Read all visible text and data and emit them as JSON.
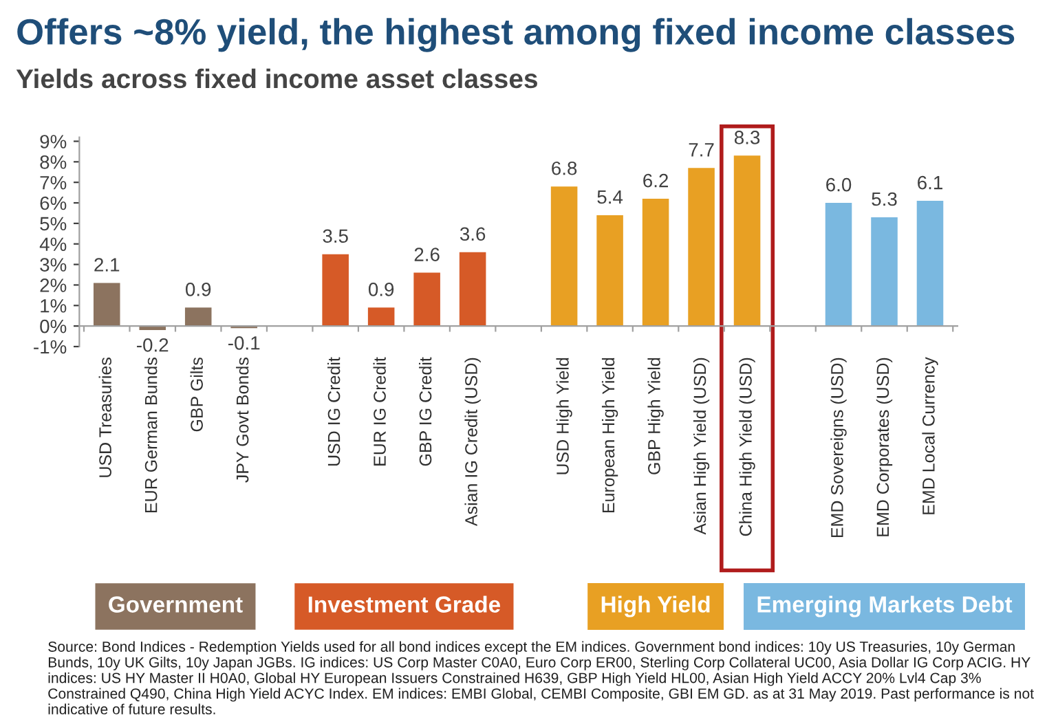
{
  "chart_data": {
    "type": "bar",
    "title": "Offers ~8% yield, the highest among fixed income classes",
    "subtitle": "Yields across fixed income asset classes",
    "categories": [
      "USD Treasuries",
      "EUR German Bunds",
      "GBP Gilts",
      "JPY Govt Bonds",
      null,
      "USD IG Credit",
      "EUR IG Credit",
      "GBP IG Credit",
      "Asian IG Credit (USD)",
      null,
      "USD High Yield",
      "European High Yield",
      "GBP High Yield",
      "Asian High Yield (USD)",
      "China High Yield (USD)",
      null,
      "EMD Sovereigns (USD)",
      "EMD Corporates (USD)",
      "EMD Local Currency"
    ],
    "series": [
      {
        "name": "Government",
        "color": "#8c735f",
        "values": [
          2.1,
          -0.2,
          0.9,
          -0.1,
          null,
          null,
          null,
          null,
          null,
          null,
          null,
          null,
          null,
          null,
          null,
          null,
          null,
          null,
          null
        ],
        "value_labels": [
          "2.1",
          "-0.2",
          "0.9",
          "-0.1",
          null,
          null,
          null,
          null,
          null,
          null,
          null,
          null,
          null,
          null,
          null,
          null,
          null,
          null,
          null
        ]
      },
      {
        "name": "Investment Grade",
        "color": "#d65a27",
        "values": [
          null,
          null,
          null,
          null,
          null,
          3.5,
          0.9,
          2.6,
          3.6,
          null,
          null,
          null,
          null,
          null,
          null,
          null,
          null,
          null,
          null
        ],
        "value_labels": [
          null,
          null,
          null,
          null,
          null,
          "3.5",
          "0.9",
          "2.6",
          "3.6",
          null,
          null,
          null,
          null,
          null,
          null,
          null,
          null,
          null,
          null
        ]
      },
      {
        "name": "High Yield",
        "color": "#e8a023",
        "values": [
          null,
          null,
          null,
          null,
          null,
          null,
          null,
          null,
          null,
          null,
          6.8,
          5.4,
          6.2,
          7.7,
          8.3,
          null,
          null,
          null,
          null
        ],
        "value_labels": [
          null,
          null,
          null,
          null,
          null,
          null,
          null,
          null,
          null,
          null,
          "6.8",
          "5.4",
          "6.2",
          "7.7",
          "8.3",
          null,
          null,
          null,
          null
        ]
      },
      {
        "name": "Emerging Markets Debt",
        "color": "#7ab8e0",
        "values": [
          null,
          null,
          null,
          null,
          null,
          null,
          null,
          null,
          null,
          null,
          null,
          null,
          null,
          null,
          null,
          null,
          6.0,
          5.3,
          6.1
        ],
        "value_labels": [
          null,
          null,
          null,
          null,
          null,
          null,
          null,
          null,
          null,
          null,
          null,
          null,
          null,
          null,
          null,
          null,
          "6.0",
          "5.3",
          "6.1"
        ]
      }
    ],
    "ylim": [
      -1,
      9.2
    ],
    "yticks": [
      {
        "value": -1,
        "label": "-1%"
      },
      {
        "value": 0,
        "label": "0%"
      },
      {
        "value": 1,
        "label": "1%"
      },
      {
        "value": 2,
        "label": "2%"
      },
      {
        "value": 3,
        "label": "3%"
      },
      {
        "value": 4,
        "label": "4%"
      },
      {
        "value": 5,
        "label": "5%"
      },
      {
        "value": 6,
        "label": "6%"
      },
      {
        "value": 7,
        "label": "7%"
      },
      {
        "value": 8,
        "label": "8%"
      },
      {
        "value": 9,
        "label": "9%"
      }
    ],
    "grid": false,
    "legend": "bottom",
    "annotations": [
      "Source: Bond Indices - Redemption Yields used for all bond indices except the EM indices. Government bond indices: 10y US Treasuries, 10y German Bunds, 10y UK Gilts, 10y Japan JGBs. IG indices: US Corp Master C0A0, Euro Corp ER00, Sterling Corp Collateral UC00, Asia Dollar IG Corp ACIG. HY indices: US HY Master II H0A0, Global HY European Issuers Constrained H639, GBP High Yield HL00, Asian High Yield ACCY 20% Lvl4 Cap 3% Constrained Q490, China High Yield ACYC Index. EM indices: EMBI Global, CEMBI Composite, GBI EM GD. as at 31 May 2019. Past performance is not indicative of future results."
    ]
  }
}
